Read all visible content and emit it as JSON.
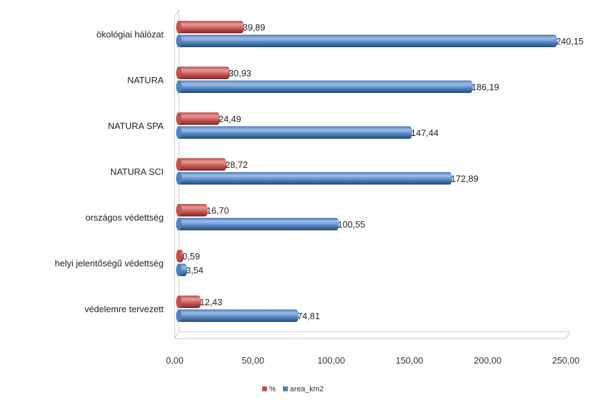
{
  "chart_data": {
    "type": "bar",
    "orientation": "horizontal",
    "style": "3d-cylinder",
    "categories": [
      "ökológiai hálózat",
      "NATURA",
      "NATURA SPA",
      "NATURA SCI",
      "országos védettség",
      "helyi jelentőségű védettség",
      "védelemre tervezett"
    ],
    "series": [
      {
        "name": "%",
        "color": "#c0504d",
        "values": [
          39.89,
          30.93,
          24.49,
          28.72,
          16.7,
          0.59,
          12.43
        ],
        "labels": [
          "39,89",
          "30,93",
          "24,49",
          "28,72",
          "16,70",
          "0,59",
          "12,43"
        ]
      },
      {
        "name": "area_km2",
        "color": "#4f81bd",
        "values": [
          240.15,
          186.19,
          147.44,
          172.89,
          100.55,
          3.54,
          74.81
        ],
        "labels": [
          "240,15",
          "186,19",
          "147,44",
          "172,89",
          "100,55",
          "3,54",
          "74,81"
        ]
      }
    ],
    "xlim": [
      0,
      250
    ],
    "xticks": [
      0,
      50,
      100,
      150,
      200,
      250
    ],
    "xtick_labels": [
      "0,00",
      "50,00",
      "100,00",
      "150,00",
      "200,00",
      "250,00"
    ],
    "title": "",
    "xlabel": "",
    "ylabel": "",
    "grid": false,
    "legend_position": "bottom"
  }
}
